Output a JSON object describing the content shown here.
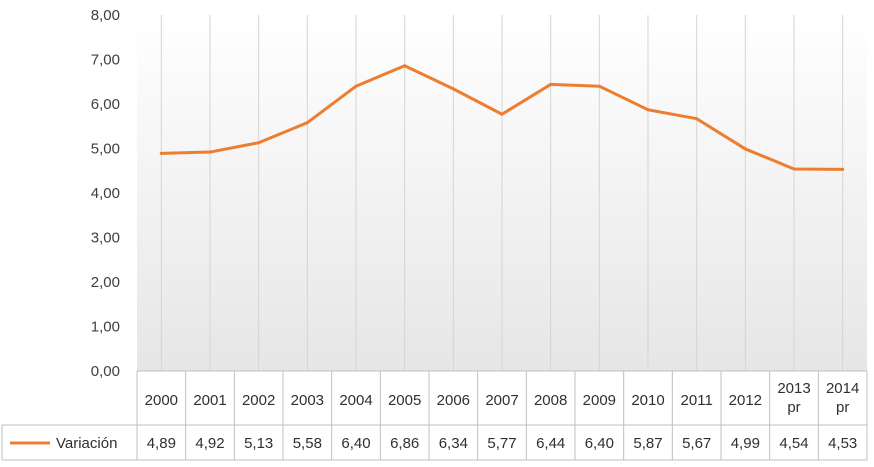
{
  "chart_data": {
    "type": "line",
    "title": "",
    "xlabel": "",
    "ylabel": "",
    "categories": [
      "2000",
      "2001",
      "2002",
      "2003",
      "2004",
      "2005",
      "2006",
      "2007",
      "2008",
      "2009",
      "2010",
      "2011",
      "2012",
      "2013 pr",
      "2014 pr"
    ],
    "series": [
      {
        "name": "Variación",
        "values": [
          4.89,
          4.92,
          5.13,
          5.58,
          6.4,
          6.86,
          6.34,
          5.77,
          6.44,
          6.4,
          5.87,
          5.67,
          4.99,
          4.54,
          4.53
        ],
        "labels": [
          "4,89",
          "4,92",
          "5,13",
          "5,58",
          "6,40",
          "6,86",
          "6,34",
          "5,77",
          "6,44",
          "6,40",
          "5,87",
          "5,67",
          "4,99",
          "4,54",
          "4,53"
        ],
        "color": "#ED7D31"
      }
    ],
    "ylim": [
      0,
      8
    ],
    "yticks": [
      "0,00",
      "1,00",
      "2,00",
      "3,00",
      "4,00",
      "5,00",
      "6,00",
      "7,00",
      "8,00"
    ],
    "grid": "vertical",
    "legend": "data-table"
  }
}
